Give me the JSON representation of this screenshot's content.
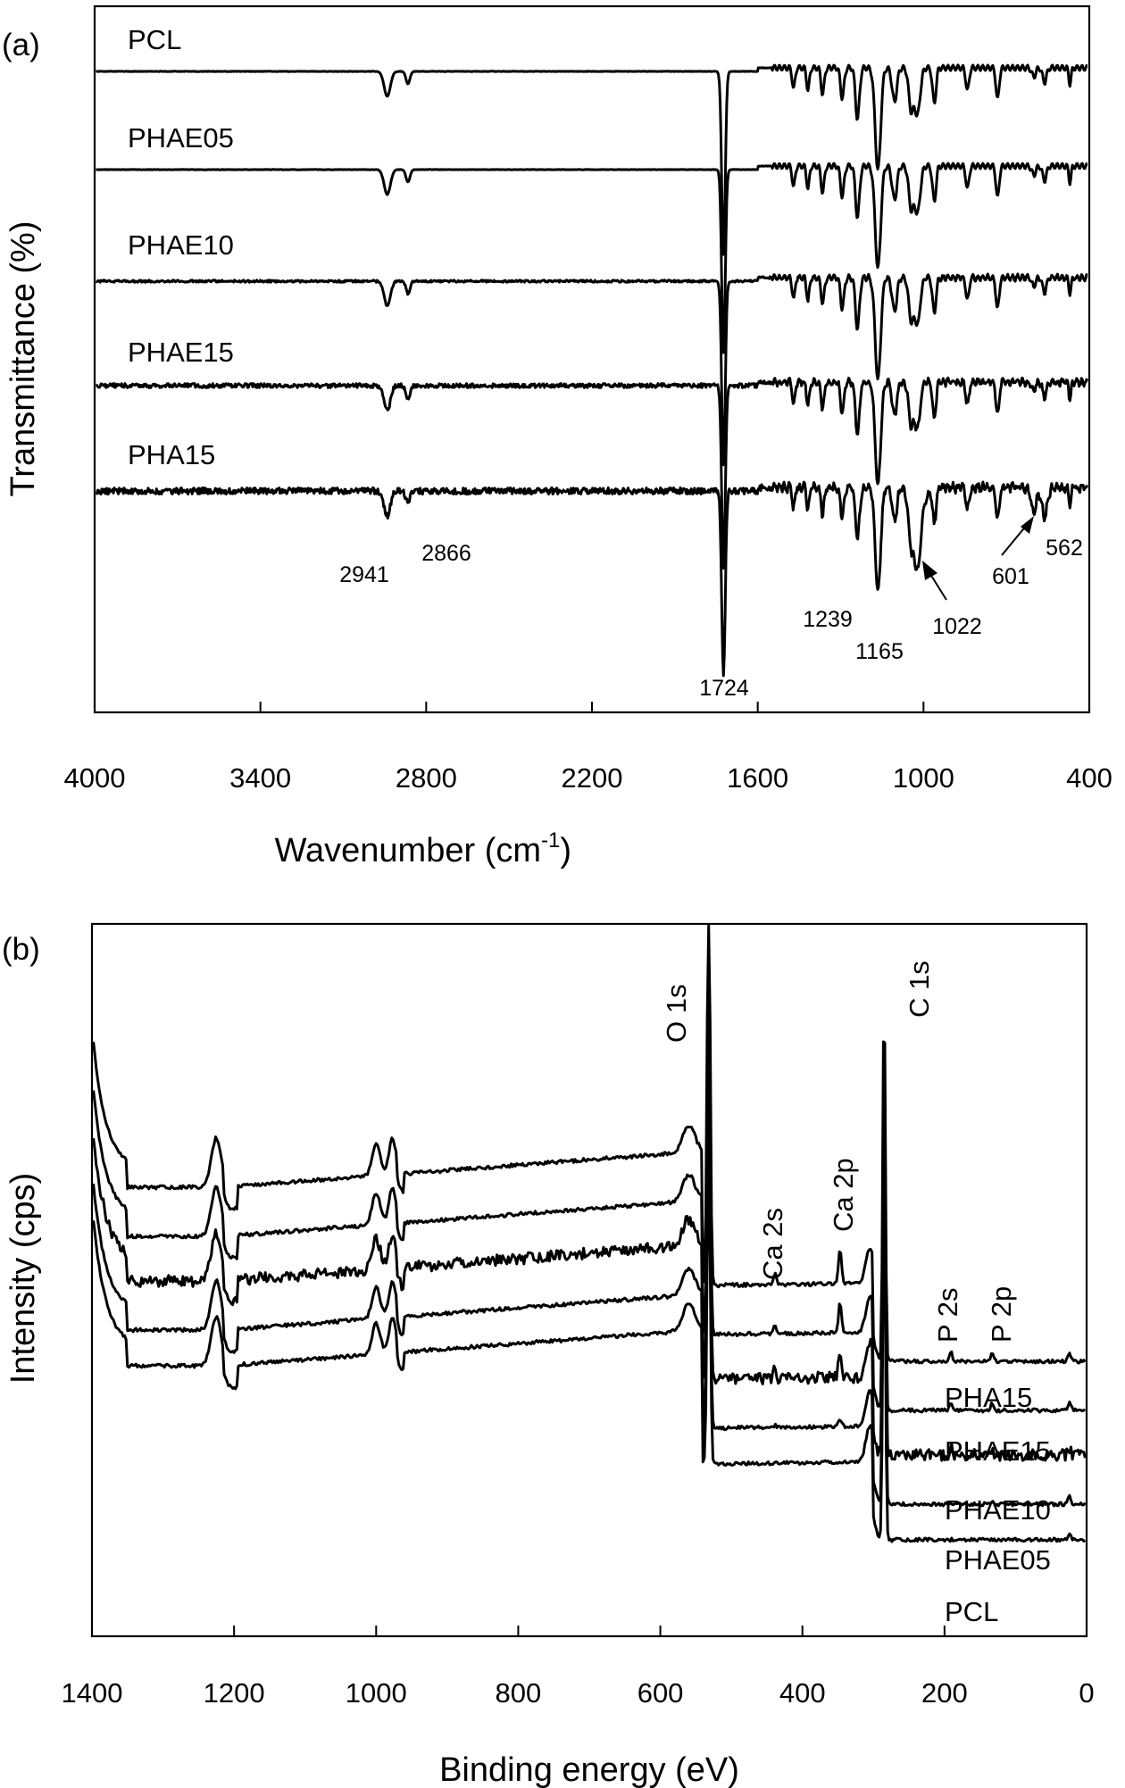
{
  "chart_data": [
    {
      "panel": "(a)",
      "type": "line",
      "xlabel": "Wavenumber (cm",
      "xlabel_superscript": "-1",
      "xlabel_close": ")",
      "ylabel": "Transmittance (%)",
      "xlim": [
        4000,
        400
      ],
      "x_reversed": true,
      "x_ticks": [
        "4000",
        "3400",
        "2800",
        "2200",
        "1600",
        "1000",
        "400"
      ],
      "series": [
        {
          "name": "PCL",
          "offset": 0
        },
        {
          "name": "PHAE05",
          "offset": 1
        },
        {
          "name": "PHAE10",
          "offset": 2
        },
        {
          "name": "PHAE15",
          "offset": 3
        },
        {
          "name": "PHA15",
          "offset": 4
        }
      ],
      "peaks": [
        {
          "label": "2941",
          "x": 2941,
          "depth": 0.22
        },
        {
          "label": "2866",
          "x": 2866,
          "depth": 0.1
        },
        {
          "label": "1724",
          "x": 1724,
          "depth": 1.0
        },
        {
          "label": "1239",
          "x": 1239,
          "depth": 0.45
        },
        {
          "label": "1165",
          "x": 1165,
          "depth": 0.62
        },
        {
          "label": "1022",
          "x": 1022,
          "depth": 0.35
        },
        {
          "label": "601",
          "x": 601,
          "depth": 0.08
        },
        {
          "label": "562",
          "x": 562,
          "depth": 0.1
        }
      ],
      "grid": false
    },
    {
      "panel": "(b)",
      "type": "line",
      "xlabel": "Binding energy (eV)",
      "ylabel": "Intensity (cps)",
      "xlim": [
        1400,
        0
      ],
      "x_reversed": true,
      "x_ticks": [
        "1400",
        "1200",
        "1000",
        "800",
        "600",
        "400",
        "200",
        "0"
      ],
      "series": [
        {
          "name": "PHA15",
          "offset": 0,
          "ca": 1.0
        },
        {
          "name": "PHAE15",
          "offset": 1,
          "ca": 0.85
        },
        {
          "name": "PHAE10",
          "offset": 2,
          "ca": 0.75
        },
        {
          "name": "PHAE05",
          "offset": 3,
          "ca": 0.2
        },
        {
          "name": "PCL",
          "offset": 4,
          "ca": 0.0
        }
      ],
      "peaks": [
        {
          "label": "O 1s",
          "x": 532
        },
        {
          "label": "Ca 2s",
          "x": 439
        },
        {
          "label": "Ca 2p",
          "x": 347
        },
        {
          "label": "C 1s",
          "x": 285
        },
        {
          "label": "P 2s",
          "x": 191
        },
        {
          "label": "P 2p",
          "x": 133
        }
      ],
      "grid": false
    }
  ]
}
